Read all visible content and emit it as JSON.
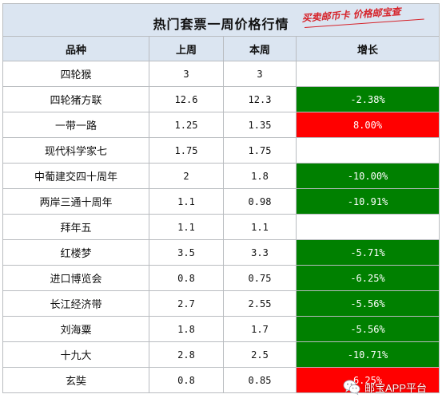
{
  "title": "热门套票一周价格行情",
  "stamp_text": "买卖邮币卡 价格邮宝查",
  "columns": {
    "name": "品种",
    "last_week": "上周",
    "this_week": "本周",
    "change": "增长"
  },
  "rows": [
    {
      "name": "四轮猴",
      "last_week": "3",
      "this_week": "3",
      "change": "",
      "trend": "flat"
    },
    {
      "name": "四轮猪方联",
      "last_week": "12.6",
      "this_week": "12.3",
      "change": "-2.38%",
      "trend": "down"
    },
    {
      "name": "一带一路",
      "last_week": "1.25",
      "this_week": "1.35",
      "change": "8.00%",
      "trend": "up"
    },
    {
      "name": "现代科学家七",
      "last_week": "1.75",
      "this_week": "1.75",
      "change": "",
      "trend": "flat"
    },
    {
      "name": "中葡建交四十周年",
      "last_week": "2",
      "this_week": "1.8",
      "change": "-10.00%",
      "trend": "down"
    },
    {
      "name": "两岸三通十周年",
      "last_week": "1.1",
      "this_week": "0.98",
      "change": "-10.91%",
      "trend": "down"
    },
    {
      "name": "拜年五",
      "last_week": "1.1",
      "this_week": "1.1",
      "change": "",
      "trend": "flat"
    },
    {
      "name": "红楼梦",
      "last_week": "3.5",
      "this_week": "3.3",
      "change": "-5.71%",
      "trend": "down"
    },
    {
      "name": "进口博览会",
      "last_week": "0.8",
      "this_week": "0.75",
      "change": "-6.25%",
      "trend": "down"
    },
    {
      "name": "长江经济带",
      "last_week": "2.7",
      "this_week": "2.55",
      "change": "-5.56%",
      "trend": "down"
    },
    {
      "name": "刘海粟",
      "last_week": "1.8",
      "this_week": "1.7",
      "change": "-5.56%",
      "trend": "down"
    },
    {
      "name": "十九大",
      "last_week": "2.8",
      "this_week": "2.5",
      "change": "-10.71%",
      "trend": "down"
    },
    {
      "name": "玄奘",
      "last_week": "0.8",
      "this_week": "0.85",
      "change": "6.25%",
      "trend": "up"
    }
  ],
  "colors": {
    "header_bg": "#dbe5f1",
    "down": "#008000",
    "up": "#ff0000",
    "stamp": "#d6232a"
  },
  "watermark": {
    "icon": "wechat-icon",
    "text": "邮宝APP平台"
  }
}
